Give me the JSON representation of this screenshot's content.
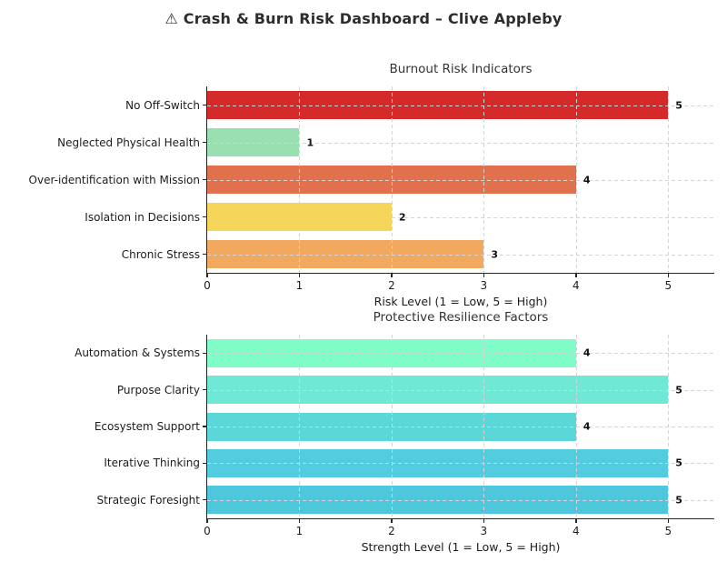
{
  "dashboard": {
    "title": "⚠ Crash & Burn Risk Dashboard – Clive Appleby",
    "background_color": "#ffffff",
    "text_color": "#1c1c1c",
    "grid_color": "#d4d4d4"
  },
  "chart_data": [
    {
      "type": "bar",
      "orientation": "horizontal",
      "title": "Burnout Risk Indicators",
      "xlabel": "Risk Level (1 = Low, 5 = High)",
      "ylabel": "",
      "categories": [
        "No Off-Switch",
        "Neglected Physical Health",
        "Over-identification with Mission",
        "Isolation in Decisions",
        "Chronic Stress"
      ],
      "values": [
        5,
        1,
        4,
        2,
        3
      ],
      "value_labels": [
        "5",
        "1",
        "4",
        "2",
        "3"
      ],
      "bar_colors": [
        "#d42a2a",
        "#99dfb1",
        "#e1704d",
        "#f5d65a",
        "#f0a95e"
      ],
      "xlim": [
        0,
        5.5
      ],
      "xticks": [
        0,
        1,
        2,
        3,
        4,
        5
      ],
      "grid": "dashed, both axes, drawn over bars",
      "legend": "none"
    },
    {
      "type": "bar",
      "orientation": "horizontal",
      "title": "Protective Resilience Factors",
      "xlabel": "Strength Level (1 = Low, 5 = High)",
      "ylabel": "",
      "categories": [
        "Automation & Systems",
        "Purpose Clarity",
        "Ecosystem Support",
        "Iterative Thinking",
        "Strategic Foresight"
      ],
      "values": [
        4,
        5,
        4,
        5,
        5
      ],
      "value_labels": [
        "4",
        "5",
        "4",
        "5",
        "5"
      ],
      "bar_colors": [
        "#7ffcc8",
        "#6fe8d5",
        "#5bd7d8",
        "#53cce0",
        "#4ec7dd"
      ],
      "xlim": [
        0,
        5.5
      ],
      "xticks": [
        0,
        1,
        2,
        3,
        4,
        5
      ],
      "grid": "dashed, both axes, drawn over bars",
      "legend": "none"
    }
  ]
}
